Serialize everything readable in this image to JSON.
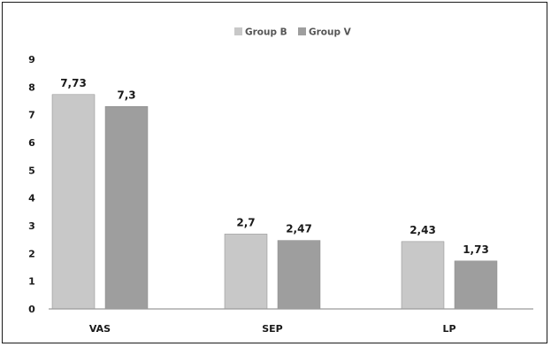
{
  "chart_data": {
    "type": "bar",
    "categories": [
      "VAS",
      "SEP",
      "LP"
    ],
    "series": [
      {
        "name": "Group B",
        "values": [
          7.73,
          2.7,
          2.43
        ],
        "labels": [
          "7,73",
          "2,7",
          "2,43"
        ],
        "color": "#c8c8c8"
      },
      {
        "name": "Group V",
        "values": [
          7.3,
          2.47,
          1.73
        ],
        "labels": [
          "7,3",
          "2,47",
          "1,73"
        ],
        "color": "#9e9e9e"
      }
    ],
    "ylim": [
      0,
      9
    ],
    "yticks": [
      "0",
      "1",
      "2",
      "3",
      "4",
      "5",
      "6",
      "7",
      "8",
      "9"
    ],
    "title": "",
    "xlabel": "",
    "ylabel": "",
    "legend_position": "top-center",
    "grid": false
  }
}
